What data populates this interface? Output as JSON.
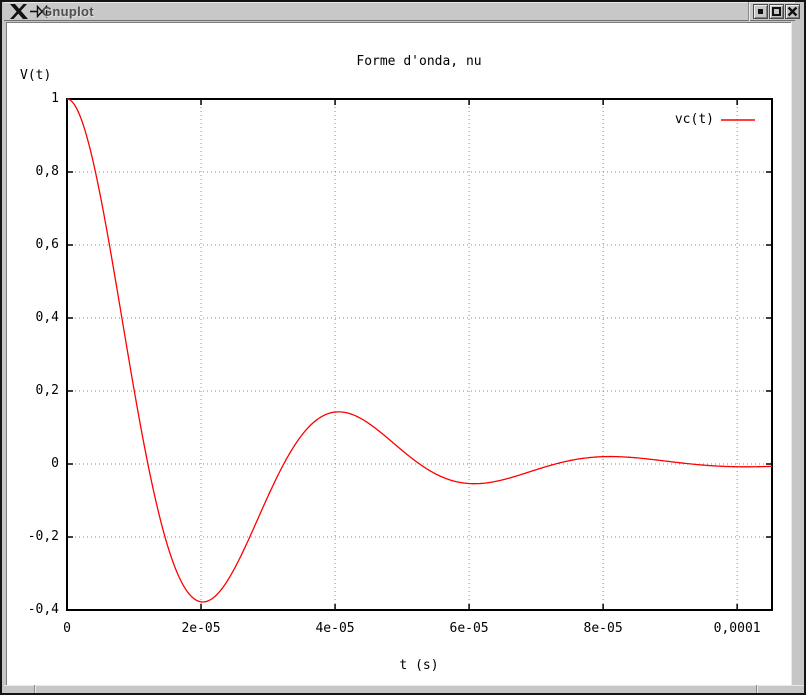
{
  "window": {
    "title": "Gnuplot",
    "buttons": {
      "minimize": "minimize",
      "maximize": "maximize",
      "close": "close"
    }
  },
  "colors": {
    "frame": "#c6c6c6",
    "canvas_bg": "#ffffff",
    "axis": "#000000",
    "grid": "#8a8a8a",
    "curve": "#ff0000"
  },
  "chart_data": {
    "type": "line",
    "title": "Forme d'onda, nu",
    "ylabel": "V(t)",
    "xlabel": "t (s)",
    "legend_position": "top-right-inside",
    "legend": [
      {
        "label": "vc(t)",
        "color": "#ff0000"
      }
    ],
    "grid": "dotted",
    "xlim": [
      0,
      0.0001052
    ],
    "ylim": [
      -0.4,
      1.0
    ],
    "xticks": [
      {
        "v": 0,
        "label": "0"
      },
      {
        "v": 2e-05,
        "label": "2e-05"
      },
      {
        "v": 4e-05,
        "label": "4e-05"
      },
      {
        "v": 6e-05,
        "label": "6e-05"
      },
      {
        "v": 8e-05,
        "label": "8e-05"
      },
      {
        "v": 0.0001,
        "label": "0,0001"
      }
    ],
    "yticks": [
      {
        "v": 1.0,
        "label": "1"
      },
      {
        "v": 0.8,
        "label": "0,8"
      },
      {
        "v": 0.6,
        "label": "0,6"
      },
      {
        "v": 0.4,
        "label": "0,4"
      },
      {
        "v": 0.2,
        "label": "0,2"
      },
      {
        "v": 0.0,
        "label": "0"
      },
      {
        "v": -0.2,
        "label": "-0,2"
      },
      {
        "v": -0.4,
        "label": "-0,4"
      }
    ],
    "series": [
      {
        "name": "vc(t)",
        "color": "#ff0000",
        "model": {
          "kind": "damped_oscillation",
          "formula": "v(t) = exp(-alpha*t) * (cos(omega*t) + (alpha/omega)*sin(omega*t))",
          "alpha": 48000,
          "omega": 155000
        },
        "key_points": [
          [
            0,
            1.0
          ],
          [
            5e-06,
            0.73
          ],
          [
            1.21e-05,
            0.0
          ],
          [
            2.22e-05,
            -0.36
          ],
          [
            3.23e-05,
            0.0
          ],
          [
            4.25e-05,
            0.135
          ],
          [
            5.26e-05,
            0.0
          ],
          [
            6.27e-05,
            -0.051
          ],
          [
            7.29e-05,
            0.0
          ],
          [
            8.3e-05,
            0.02
          ],
          [
            0.0001,
            -0.007
          ],
          [
            0.000105,
            -0.005
          ]
        ]
      }
    ]
  }
}
